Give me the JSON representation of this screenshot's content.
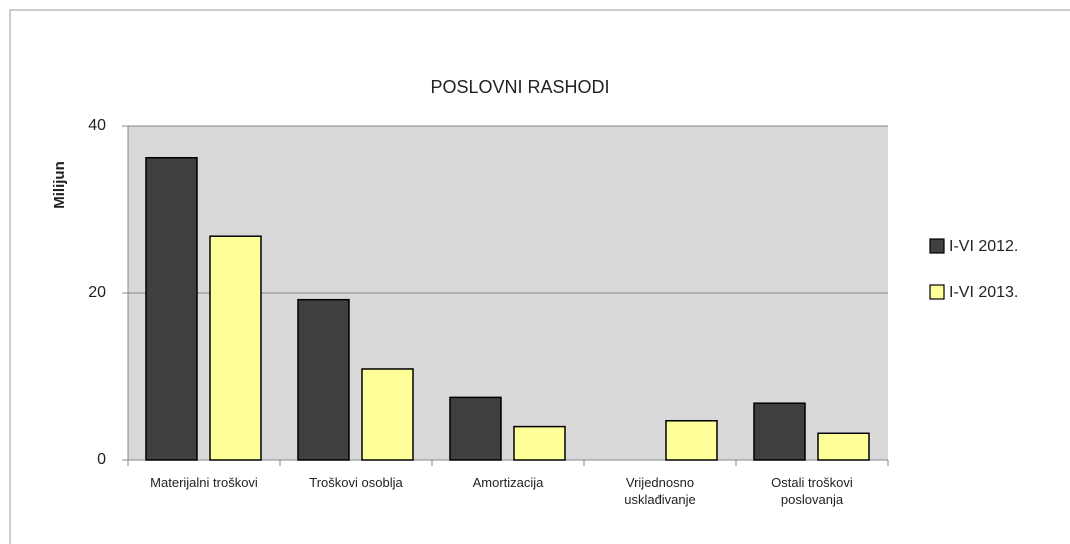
{
  "chart_data": {
    "type": "bar",
    "title": "POSLOVNI RASHODI",
    "y_axis_label": "Milijun",
    "categories": [
      "Materijalni troškovi",
      "Troškovi osoblja",
      "Amortizacija",
      "Vrijednosno usklađivanje",
      "Ostali troškovi poslovanja"
    ],
    "series": [
      {
        "name": "I-VI 2012.",
        "color": "#404040",
        "values": [
          36.2,
          19.2,
          7.5,
          0,
          6.8
        ]
      },
      {
        "name": "I-VI 2013.",
        "color": "#ffff99",
        "values": [
          26.8,
          10.9,
          4.0,
          4.7,
          3.2
        ]
      }
    ],
    "ylim": [
      0,
      40
    ],
    "yticks": [
      0,
      20,
      40
    ],
    "grid": true,
    "legend": "right"
  }
}
